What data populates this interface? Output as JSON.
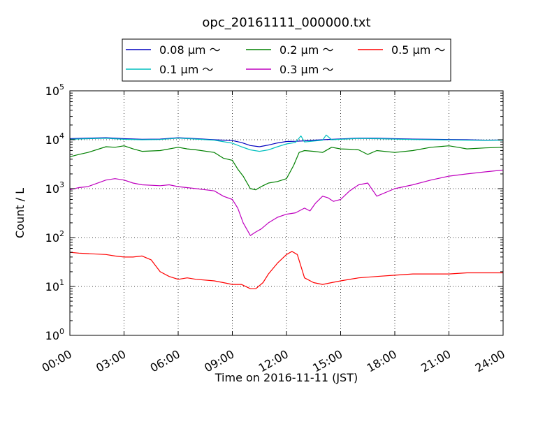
{
  "chart_data": {
    "type": "line",
    "title": "opc_20161111_000000.txt",
    "xlabel": "Time on 2016-11-11 (JST)",
    "ylabel": "Count / L",
    "yscale": "log",
    "ylim": [
      1,
      100000
    ],
    "xlim": [
      0,
      24
    ],
    "grid": true,
    "legend_position": "top, above plot",
    "x_ticks": [
      "00:00",
      "03:00",
      "06:00",
      "09:00",
      "12:00",
      "15:00",
      "18:00",
      "21:00",
      "24:00"
    ],
    "y_ticks": [
      {
        "base": "10",
        "exp": "0"
      },
      {
        "base": "10",
        "exp": "1"
      },
      {
        "base": "10",
        "exp": "2"
      },
      {
        "base": "10",
        "exp": "3"
      },
      {
        "base": "10",
        "exp": "4"
      },
      {
        "base": "10",
        "exp": "5"
      }
    ],
    "series": [
      {
        "name": "0.08 μm ～",
        "color": "#0000bf",
        "x": [
          0,
          1,
          2,
          3,
          4,
          5,
          6,
          7,
          8,
          9,
          9.5,
          10,
          10.5,
          11,
          11.5,
          12,
          12.5,
          13,
          13.5,
          14,
          15,
          16,
          17,
          18,
          19,
          20,
          21,
          22,
          23,
          24
        ],
        "y": [
          10500,
          10800,
          11000,
          10500,
          10200,
          10300,
          11000,
          10500,
          10000,
          9600,
          8800,
          7600,
          7200,
          7800,
          8600,
          9200,
          9300,
          9500,
          9800,
          10000,
          10400,
          10800,
          10700,
          10500,
          10300,
          10200,
          10100,
          10000,
          9800,
          9900
        ]
      },
      {
        "name": "0.1 μm ～",
        "color": "#00bfbf",
        "x": [
          0,
          1,
          2,
          3,
          4,
          5,
          6,
          7,
          8,
          9,
          9.5,
          10,
          10.5,
          11,
          11.5,
          12,
          12.5,
          12.8,
          13,
          13.5,
          14,
          14.2,
          14.5,
          15,
          16,
          17,
          18,
          19,
          20,
          21,
          22,
          23,
          24
        ],
        "y": [
          10200,
          10500,
          10700,
          10200,
          10000,
          10100,
          10800,
          10300,
          9800,
          8500,
          7200,
          6200,
          5800,
          6200,
          7200,
          8200,
          8800,
          12000,
          9000,
          9400,
          9800,
          12500,
          10000,
          10200,
          10600,
          10500,
          10300,
          10100,
          10000,
          9900,
          9800,
          9700,
          9800
        ]
      },
      {
        "name": "0.2 μm ～",
        "color": "#008000",
        "x": [
          0,
          0.5,
          1,
          2,
          2.5,
          3,
          3.5,
          4,
          5,
          6,
          6.5,
          7,
          8,
          8.5,
          9,
          9.3,
          9.6,
          10,
          10.3,
          10.6,
          11,
          11.5,
          12,
          12.4,
          12.7,
          13,
          13.5,
          14,
          14.5,
          15,
          15.5,
          16,
          16.5,
          17,
          18,
          19,
          20,
          21,
          21.5,
          22,
          23,
          24
        ],
        "y": [
          4500,
          5000,
          5500,
          7200,
          7000,
          7500,
          6500,
          5800,
          6000,
          7000,
          6500,
          6200,
          5500,
          4200,
          3800,
          2500,
          1800,
          1000,
          950,
          1100,
          1300,
          1400,
          1600,
          3000,
          5500,
          6000,
          5800,
          5500,
          7000,
          6500,
          6400,
          6200,
          5000,
          6000,
          5500,
          6000,
          7000,
          7500,
          7000,
          6500,
          6800,
          7000
        ]
      },
      {
        "name": "0.3 μm ～",
        "color": "#bf00bf",
        "x": [
          0,
          0.5,
          1,
          2,
          2.5,
          3,
          3.5,
          4,
          5,
          5.5,
          6,
          7,
          8,
          8.5,
          9,
          9.3,
          9.6,
          10,
          10.3,
          10.6,
          11,
          11.5,
          12,
          12.5,
          13,
          13.3,
          13.6,
          14,
          14.3,
          14.6,
          15,
          15.5,
          16,
          16.5,
          17,
          18,
          19,
          20,
          21,
          22,
          23,
          24
        ],
        "y": [
          950,
          1050,
          1100,
          1500,
          1600,
          1500,
          1300,
          1200,
          1150,
          1200,
          1100,
          1000,
          900,
          700,
          600,
          400,
          200,
          110,
          130,
          150,
          200,
          260,
          300,
          320,
          400,
          350,
          500,
          700,
          650,
          550,
          600,
          900,
          1200,
          1300,
          700,
          1000,
          1200,
          1500,
          1800,
          2000,
          2200,
          2400
        ]
      },
      {
        "name": "0.5 μm ～",
        "color": "#ff0000",
        "x": [
          0,
          0.5,
          1,
          2,
          2.5,
          3,
          3.5,
          4,
          4.5,
          5,
          5.5,
          6,
          6.5,
          7,
          8,
          8.5,
          9,
          9.5,
          10,
          10.3,
          10.7,
          11,
          11.5,
          12,
          12.3,
          12.6,
          13,
          13.5,
          14,
          14.5,
          15,
          16,
          17,
          18,
          19,
          20,
          21,
          22,
          23,
          24
        ],
        "y": [
          50,
          48,
          47,
          45,
          42,
          40,
          40,
          42,
          35,
          20,
          16,
          14,
          15,
          14,
          13,
          12,
          11,
          11,
          9,
          9,
          12,
          18,
          30,
          45,
          52,
          45,
          15,
          12,
          11,
          12,
          13,
          15,
          16,
          17,
          18,
          18,
          18,
          19,
          19,
          19
        ]
      }
    ]
  }
}
